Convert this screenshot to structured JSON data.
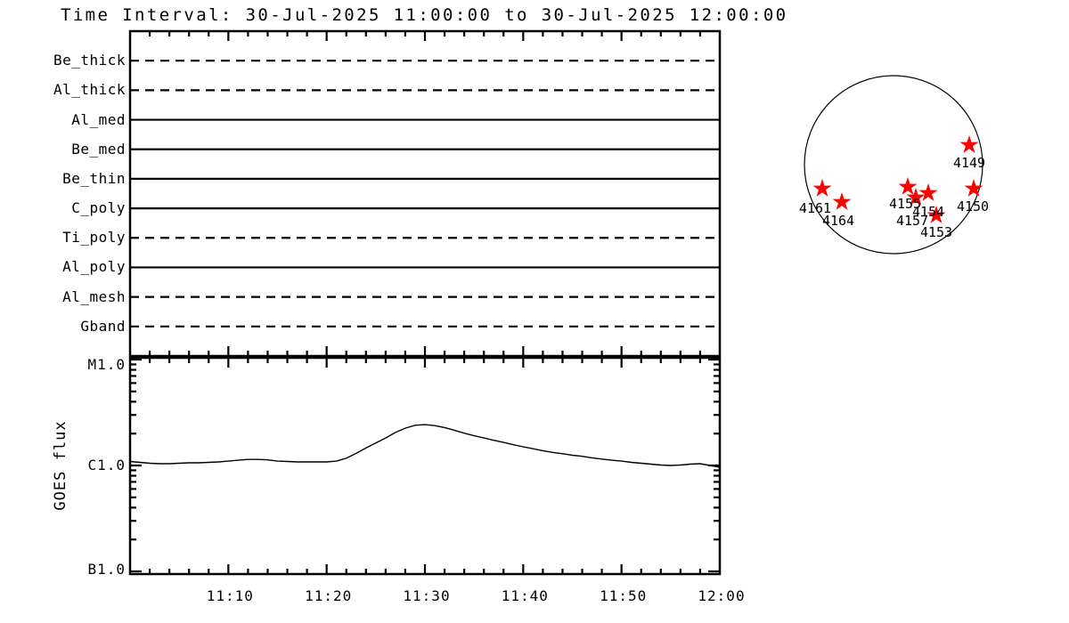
{
  "title": "Time Interval: 30-Jul-2025 11:00:00 to 30-Jul-2025 12:00:00",
  "chart_data": [
    {
      "id": "filter-timeline",
      "type": "table",
      "x_range": [
        "11:00",
        "12:00"
      ],
      "rows": [
        {
          "filter": "Be_thick",
          "line_style": "dashed"
        },
        {
          "filter": "Al_thick",
          "line_style": "dashed"
        },
        {
          "filter": "Al_med",
          "line_style": "solid"
        },
        {
          "filter": "Be_med",
          "line_style": "solid"
        },
        {
          "filter": "Be_thin",
          "line_style": "solid"
        },
        {
          "filter": "C_poly",
          "line_style": "solid"
        },
        {
          "filter": "Ti_poly",
          "line_style": "dashed"
        },
        {
          "filter": "Al_poly",
          "line_style": "solid"
        },
        {
          "filter": "Al_mesh",
          "line_style": "dashed"
        },
        {
          "filter": "Gband",
          "line_style": "dashed"
        }
      ]
    },
    {
      "id": "goes-flux",
      "type": "line",
      "ylabel": "GOES flux",
      "yscale": "log",
      "ytick_labels": [
        "M1.0",
        "C1.0",
        "B1.0"
      ],
      "xtick_labels": [
        "11:10",
        "11:20",
        "11:30",
        "11:40",
        "11:50",
        "12:00"
      ],
      "x_start": "11:00",
      "x_step_minutes": 1,
      "flux_c_units": [
        1.09,
        1.07,
        1.05,
        1.04,
        1.04,
        1.05,
        1.06,
        1.06,
        1.07,
        1.08,
        1.1,
        1.12,
        1.14,
        1.14,
        1.13,
        1.1,
        1.09,
        1.08,
        1.08,
        1.08,
        1.08,
        1.1,
        1.17,
        1.3,
        1.46,
        1.63,
        1.82,
        2.05,
        2.25,
        2.4,
        2.43,
        2.38,
        2.28,
        2.15,
        2.02,
        1.91,
        1.82,
        1.73,
        1.65,
        1.57,
        1.5,
        1.44,
        1.38,
        1.33,
        1.29,
        1.25,
        1.22,
        1.18,
        1.15,
        1.12,
        1.1,
        1.07,
        1.05,
        1.03,
        1.01,
        1.0,
        1.01,
        1.03,
        1.04,
        1.0,
        0.96
      ]
    },
    {
      "id": "solar-disk-active-regions",
      "type": "scatter",
      "marker": "star",
      "marker_color": "#ff0000",
      "points": [
        {
          "label": "4161",
          "disk_x": -0.8,
          "disk_y": 0.27
        },
        {
          "label": "4164",
          "disk_x": -0.58,
          "disk_y": 0.42
        },
        {
          "label": "4149",
          "disk_x": 0.85,
          "disk_y": -0.22
        },
        {
          "label": "4150",
          "disk_x": 0.9,
          "disk_y": 0.27
        },
        {
          "label": "4157",
          "disk_x": 0.25,
          "disk_y": 0.37
        },
        {
          "label": "4155",
          "disk_x": 0.16,
          "disk_y": 0.25
        },
        {
          "label": "4154",
          "disk_x": 0.39,
          "disk_y": 0.32
        },
        {
          "label": "4153",
          "disk_x": 0.48,
          "disk_y": 0.57
        }
      ]
    }
  ]
}
